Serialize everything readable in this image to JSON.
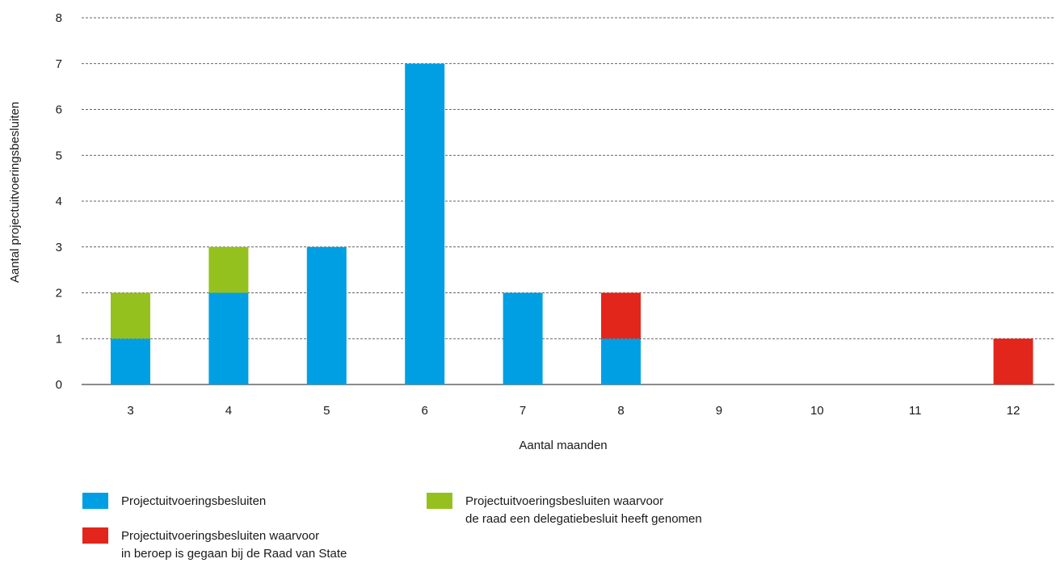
{
  "chart_data": {
    "type": "bar",
    "stacked": true,
    "categories": [
      "3",
      "4",
      "5",
      "6",
      "7",
      "8",
      "9",
      "10",
      "11",
      "12"
    ],
    "series": [
      {
        "name": "Projectuitvoeringsbesluiten",
        "color": "#009fe3",
        "values": [
          1,
          2,
          3,
          7,
          2,
          1,
          0,
          0,
          0,
          0
        ]
      },
      {
        "name": "Projectuitvoeringsbesluiten waarvoor\nde raad een delegatiebesluit heeft genomen",
        "color": "#95c11f",
        "values": [
          1,
          1,
          0,
          0,
          0,
          0,
          0,
          0,
          0,
          0
        ]
      },
      {
        "name": "Projectuitvoeringsbesluiten waarvoor\nin beroep is gegaan bij de Raad van State",
        "color": "#e3261b",
        "values": [
          0,
          0,
          0,
          0,
          0,
          1,
          0,
          0,
          0,
          1
        ]
      }
    ],
    "xlabel": "Aantal maanden",
    "ylabel": "Aantal projectuitvoeringsbesluiten",
    "ylim": [
      0,
      8
    ],
    "yticks": [
      "0",
      "1",
      "2",
      "3",
      "4",
      "5",
      "6",
      "7",
      "8"
    ],
    "grid": true,
    "grid_style": "dashed",
    "legend_position": "bottom"
  }
}
